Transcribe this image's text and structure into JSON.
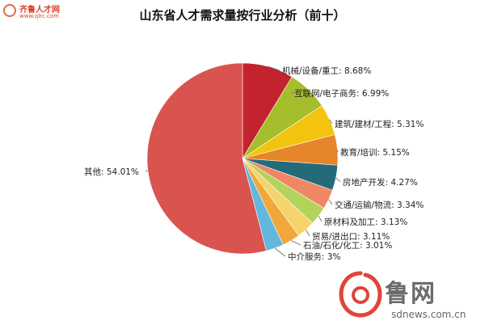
{
  "chart_data": {
    "type": "pie",
    "title": "山东省人才需求量按行业分析（前十）",
    "slices": [
      {
        "label": "机械/设备/重工: 8.68%",
        "value": 8.68,
        "color": "#c3232e"
      },
      {
        "label": "互联网/电子商务: 6.99%",
        "value": 6.99,
        "color": "#a6bd2c"
      },
      {
        "label": "建筑/建材/工程: 5.31%",
        "value": 5.31,
        "color": "#f2c40d"
      },
      {
        "label": "教育/培训: 5.15%",
        "value": 5.15,
        "color": "#e6862b"
      },
      {
        "label": "房地产开发: 4.27%",
        "value": 4.27,
        "color": "#246b79"
      },
      {
        "label": "交通/运输/物流: 3.34%",
        "value": 3.34,
        "color": "#f08764"
      },
      {
        "label": "原材料及加工: 3.13%",
        "value": 3.13,
        "color": "#b3d35b"
      },
      {
        "label": "贸易/进出口: 3.11%",
        "value": 3.11,
        "color": "#f5d46b"
      },
      {
        "label": "石油/石化/化工: 3.01%",
        "value": 3.01,
        "color": "#f2a73a"
      },
      {
        "label": "中介服务: 3%",
        "value": 3.0,
        "color": "#63b7de"
      },
      {
        "label": "其他: 54.01%",
        "value": 54.01,
        "color": "#d9534f"
      }
    ]
  },
  "watermarks": {
    "top_left_name": "齐鲁人才网",
    "top_left_url": "www.qlrc.com",
    "bottom_right_name": "鲁网",
    "bottom_right_url": "sdnews.com.cn"
  }
}
